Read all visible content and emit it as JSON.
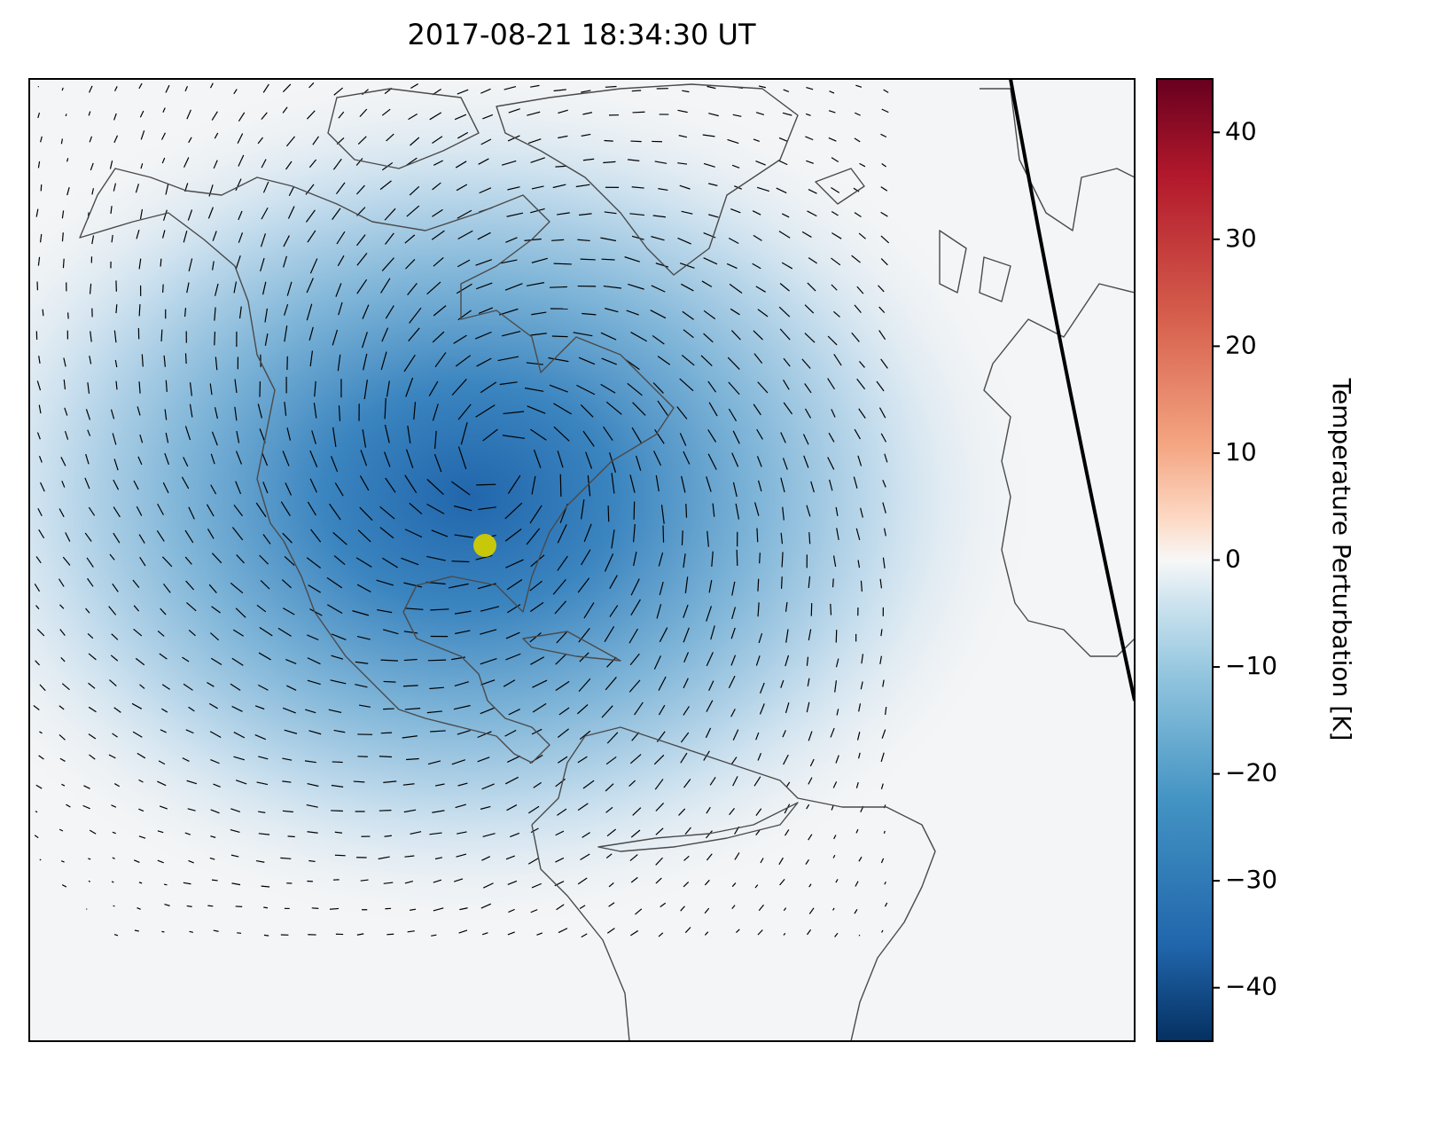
{
  "map": {
    "title": "2017-08-21 18:34:30 UT",
    "colorbar": {
      "label": "Temperature Perturbation [K]",
      "lim": [
        -45,
        45
      ],
      "ticks": [
        {
          "value": -40,
          "label": "−40"
        },
        {
          "value": -30,
          "label": "−30"
        },
        {
          "value": -20,
          "label": "−20"
        },
        {
          "value": -10,
          "label": "−10"
        },
        0,
        10,
        20,
        30,
        40
      ]
    }
  }
}
